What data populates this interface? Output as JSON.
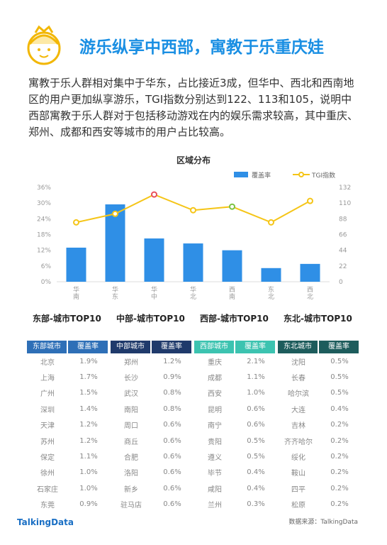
{
  "header": {
    "title": "游乐纵享中西部，寓教于乐重庆娃"
  },
  "paragraph": "寓教于乐人群相对集中于华东，占比接近3成，但华中、西北和西南地区的用户更加纵享游乐，TGI指数分别达到122、113和105，说明中西部寓教于乐人群对于包括移动游戏在内的娱乐需求较高，其中重庆、郑州、成都和西安等城市的用户占比较高。",
  "chart_data": {
    "type": "bar-line",
    "title": "区域分布",
    "categories": [
      "华南",
      "华东",
      "华中",
      "华北",
      "西南",
      "东北",
      "西北"
    ],
    "series": [
      {
        "name": "覆盖率",
        "type": "bar",
        "color": "#2f8fe6",
        "values": [
          13,
          29.5,
          16.5,
          14.6,
          12,
          5.2,
          6.8
        ]
      },
      {
        "name": "TGI指数",
        "type": "line",
        "axis": "y2",
        "color": "#f5c518",
        "values": [
          83,
          95,
          122,
          100,
          105,
          83,
          113
        ],
        "marker_edge_colors": [
          "#f5c518",
          "#f5c518",
          "#e8505b",
          "#f5c518",
          "#7cc242",
          "#f5c518",
          "#f5c518"
        ]
      }
    ],
    "ylim": [
      0,
      36
    ],
    "yticks": [
      {
        "value": 0,
        "label": "0%"
      },
      {
        "value": 6,
        "label": "6%"
      },
      {
        "value": 12,
        "label": "12%"
      },
      {
        "value": 18,
        "label": "18%"
      },
      {
        "value": 24,
        "label": "24%"
      },
      {
        "value": 30,
        "label": "30%"
      },
      {
        "value": 36,
        "label": "36%"
      }
    ],
    "y2lim": [
      0,
      132
    ],
    "y2ticks": [
      0,
      22,
      44,
      66,
      88,
      110,
      132
    ],
    "legend": "top-right",
    "grid": false
  },
  "tables": [
    {
      "label": "东部-城市TOP10",
      "header": [
        "东部城市",
        "覆盖率"
      ],
      "color": "#2e6fb7",
      "rows": [
        [
          "北京",
          "1.9%"
        ],
        [
          "上海",
          "1.7%"
        ],
        [
          "广州",
          "1.5%"
        ],
        [
          "深圳",
          "1.4%"
        ],
        [
          "天津",
          "1.2%"
        ],
        [
          "苏州",
          "1.2%"
        ],
        [
          "保定",
          "1.1%"
        ],
        [
          "徐州",
          "1.0%"
        ],
        [
          "石家庄",
          "1.0%"
        ],
        [
          "东莞",
          "0.9%"
        ]
      ]
    },
    {
      "label": "中部-城市TOP10",
      "header": [
        "中部城市",
        "覆盖率"
      ],
      "color": "#1f3a6b",
      "rows": [
        [
          "郑州",
          "1.2%"
        ],
        [
          "长沙",
          "0.9%"
        ],
        [
          "武汉",
          "0.8%"
        ],
        [
          "南阳",
          "0.8%"
        ],
        [
          "周口",
          "0.6%"
        ],
        [
          "商丘",
          "0.6%"
        ],
        [
          "合肥",
          "0.6%"
        ],
        [
          "洛阳",
          "0.6%"
        ],
        [
          "新乡",
          "0.6%"
        ],
        [
          "驻马店",
          "0.6%"
        ]
      ]
    },
    {
      "label": "西部-城市TOP10",
      "header": [
        "西部城市",
        "覆盖率"
      ],
      "color": "#3cc3b0",
      "rows": [
        [
          "重庆",
          "2.1%"
        ],
        [
          "成都",
          "1.1%"
        ],
        [
          "西安",
          "1.0%"
        ],
        [
          "昆明",
          "0.6%"
        ],
        [
          "南宁",
          "0.6%"
        ],
        [
          "贵阳",
          "0.5%"
        ],
        [
          "遵义",
          "0.5%"
        ],
        [
          "毕节",
          "0.4%"
        ],
        [
          "咸阳",
          "0.4%"
        ],
        [
          "兰州",
          "0.3%"
        ]
      ]
    },
    {
      "label": "东北-城市TOP10",
      "header": [
        "东北城市",
        "覆盖率"
      ],
      "color": "#1d5c5c",
      "rows": [
        [
          "沈阳",
          "0.5%"
        ],
        [
          "长春",
          "0.5%"
        ],
        [
          "哈尔滨",
          "0.5%"
        ],
        [
          "大连",
          "0.4%"
        ],
        [
          "吉林",
          "0.2%"
        ],
        [
          "齐齐哈尔",
          "0.2%"
        ],
        [
          "绥化",
          "0.2%"
        ],
        [
          "鞍山",
          "0.2%"
        ],
        [
          "四平",
          "0.2%"
        ],
        [
          "松原",
          "0.2%"
        ]
      ]
    }
  ],
  "footer": {
    "brand": "TalkingData",
    "source": "数据来源：TalkingData"
  }
}
